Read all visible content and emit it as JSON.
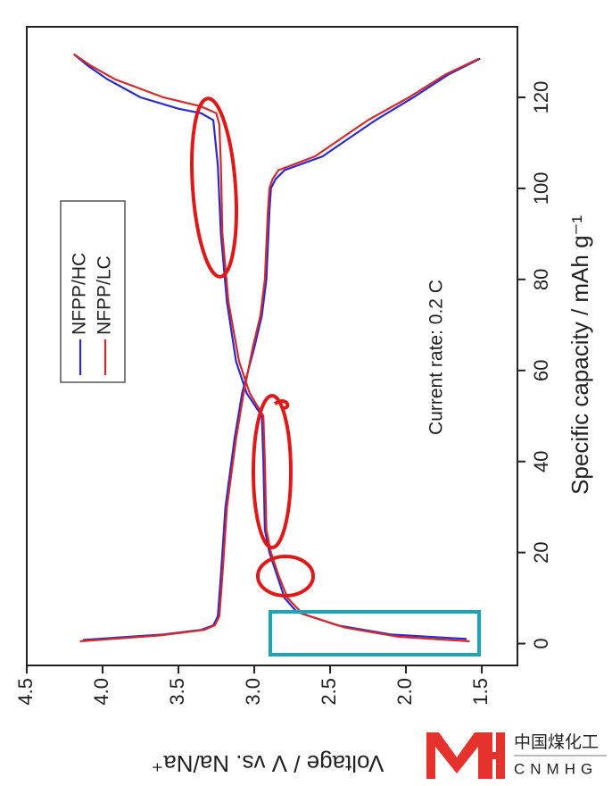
{
  "chart_data": {
    "type": "line",
    "x_label": "Specific capacity / mAh g⁻¹",
    "y_label": "Voltage / V vs. Na/Na⁺",
    "annotation": "Current rate: 0.2 C",
    "xlim": [
      -4.8,
      135.5
    ],
    "xticks": [
      0,
      20,
      40,
      60,
      80,
      100,
      120
    ],
    "ylim": [
      1.265,
      4.5
    ],
    "yticks": [
      {
        "value": 1.5,
        "label": "1.5"
      },
      {
        "value": 2,
        "label": "2.0"
      },
      {
        "value": 2.5,
        "label": "2.5"
      },
      {
        "value": 3,
        "label": "3.0"
      },
      {
        "value": 3.5,
        "label": "3.5"
      },
      {
        "value": 4,
        "label": "4.0"
      },
      {
        "value": 4.5,
        "label": "4.5"
      }
    ],
    "legend": "upper-left",
    "series": [
      {
        "name": "NFPP/HC",
        "color": "#2a2ad0",
        "x": [
          0.8,
          2,
          3,
          4,
          6,
          15,
          30,
          45,
          55,
          65,
          72,
          80,
          95,
          100,
          102,
          104,
          107,
          110,
          115,
          120,
          125,
          128.5,
          null,
          1,
          2,
          4,
          7,
          10,
          15,
          20,
          25,
          40,
          50,
          55,
          62,
          75,
          90,
          105,
          115,
          116.5,
          117.5,
          120,
          124,
          127,
          129.5
        ],
        "values": [
          4.13,
          3.6,
          3.35,
          3.27,
          3.24,
          3.22,
          3.19,
          3.13,
          3.08,
          3.0,
          2.95,
          2.92,
          2.9,
          2.89,
          2.86,
          2.8,
          2.55,
          2.42,
          2.2,
          1.95,
          1.72,
          1.51,
          null,
          1.6,
          2.1,
          2.45,
          2.72,
          2.8,
          2.85,
          2.9,
          2.93,
          2.94,
          2.95,
          3.05,
          3.12,
          3.18,
          3.22,
          3.24,
          3.27,
          3.35,
          3.5,
          3.75,
          3.97,
          4.1,
          4.19
        ]
      },
      {
        "name": "NFPP/LC",
        "color": "#d42a2a",
        "x": [
          0.5,
          1.8,
          3,
          4,
          6,
          15,
          30,
          45,
          55,
          65,
          72,
          80,
          95,
          100,
          102,
          104,
          107,
          110,
          115,
          120,
          125,
          128.5,
          null,
          0.5,
          1.5,
          3.5,
          6.5,
          10,
          15,
          20,
          25,
          40,
          50,
          55,
          62,
          75,
          90,
          105,
          114,
          116.5,
          118,
          120,
          124,
          127,
          129.5
        ],
        "values": [
          4.15,
          3.62,
          3.33,
          3.26,
          3.23,
          3.21,
          3.18,
          3.12,
          3.07,
          3.01,
          2.96,
          2.93,
          2.91,
          2.9,
          2.88,
          2.84,
          2.6,
          2.47,
          2.25,
          1.98,
          1.74,
          1.52,
          null,
          1.58,
          2.05,
          2.4,
          2.68,
          2.78,
          2.84,
          2.89,
          2.92,
          2.93,
          2.94,
          3.03,
          3.1,
          3.17,
          3.21,
          3.22,
          3.23,
          3.25,
          3.35,
          3.6,
          3.92,
          4.08,
          4.19
        ]
      }
    ]
  },
  "watermark": {
    "text": "中国煤化工",
    "subtext": "CNMHG"
  }
}
